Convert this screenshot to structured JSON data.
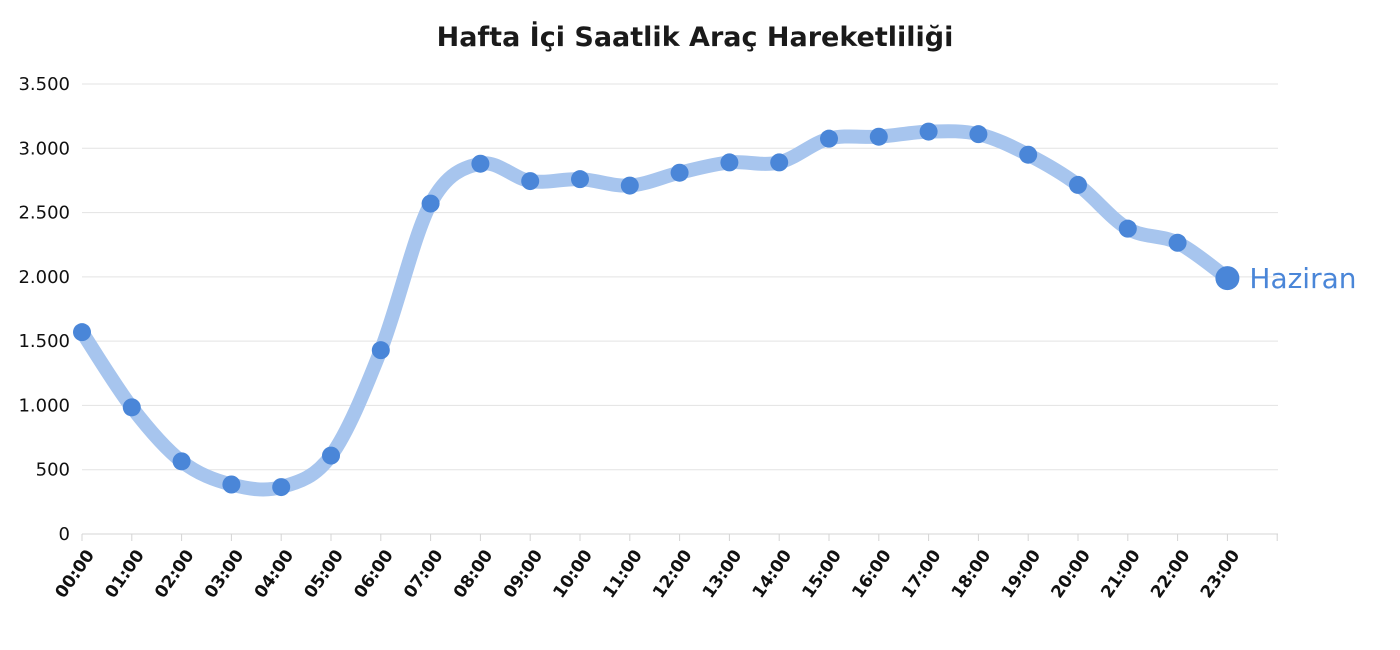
{
  "chart_data": {
    "type": "line",
    "title": "Hafta İçi Saatlik Araç Hareketliliği",
    "xlabel": "",
    "ylabel": "",
    "ylim": [
      0,
      3500
    ],
    "yticks": [
      0,
      500,
      1000,
      1500,
      2000,
      2500,
      3000,
      3500
    ],
    "ytick_labels": [
      "0",
      "500",
      "1.000",
      "1.500",
      "2.000",
      "2.500",
      "3.000",
      "3.500"
    ],
    "categories": [
      "00:00",
      "01:00",
      "02:00",
      "03:00",
      "04:00",
      "05:00",
      "06:00",
      "07:00",
      "08:00",
      "09:00",
      "10:00",
      "11:00",
      "12:00",
      "13:00",
      "14:00",
      "15:00",
      "16:00",
      "17:00",
      "18:00",
      "19:00",
      "20:00",
      "21:00",
      "22:00",
      "23:00"
    ],
    "grid": true,
    "legend": "end-of-line",
    "series": [
      {
        "name": "Haziran",
        "values": [
          1570,
          985,
          565,
          385,
          365,
          610,
          1430,
          2570,
          2880,
          2745,
          2760,
          2710,
          2810,
          2890,
          2890,
          3075,
          3090,
          3130,
          3110,
          2950,
          2715,
          2375,
          2265,
          1990
        ],
        "line_color": "#a7c5ee",
        "marker_color": "#4a86d8"
      }
    ]
  }
}
